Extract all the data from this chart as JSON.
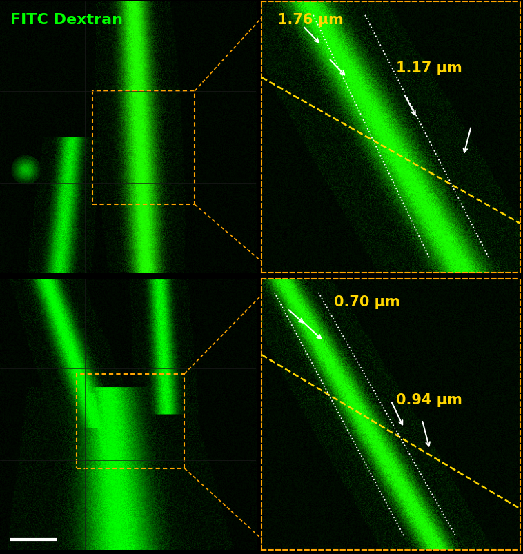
{
  "fig_width": 7.58,
  "fig_height": 8.04,
  "bg_color": "#000000",
  "fitc_label": "FITC Dextran",
  "fitc_color": "#00ff00",
  "fitc_fontsize": 16,
  "orange_color": "#FFA500",
  "measurements": {
    "top_right": {
      "label1": "1.76 μm",
      "label2": "1.17 μm"
    },
    "bottom_right": {
      "label1": "0.70 μm",
      "label2": "0.94 μm"
    }
  },
  "meas_color": "#FFD700",
  "meas_fontsize": 15,
  "arrow_color": "#ffffff",
  "dotted_box_color": "#FFA500",
  "white_dotted_color": "#ffffff",
  "scalebar_color": "#ffffff",
  "grid_color": "#1a1a1a"
}
